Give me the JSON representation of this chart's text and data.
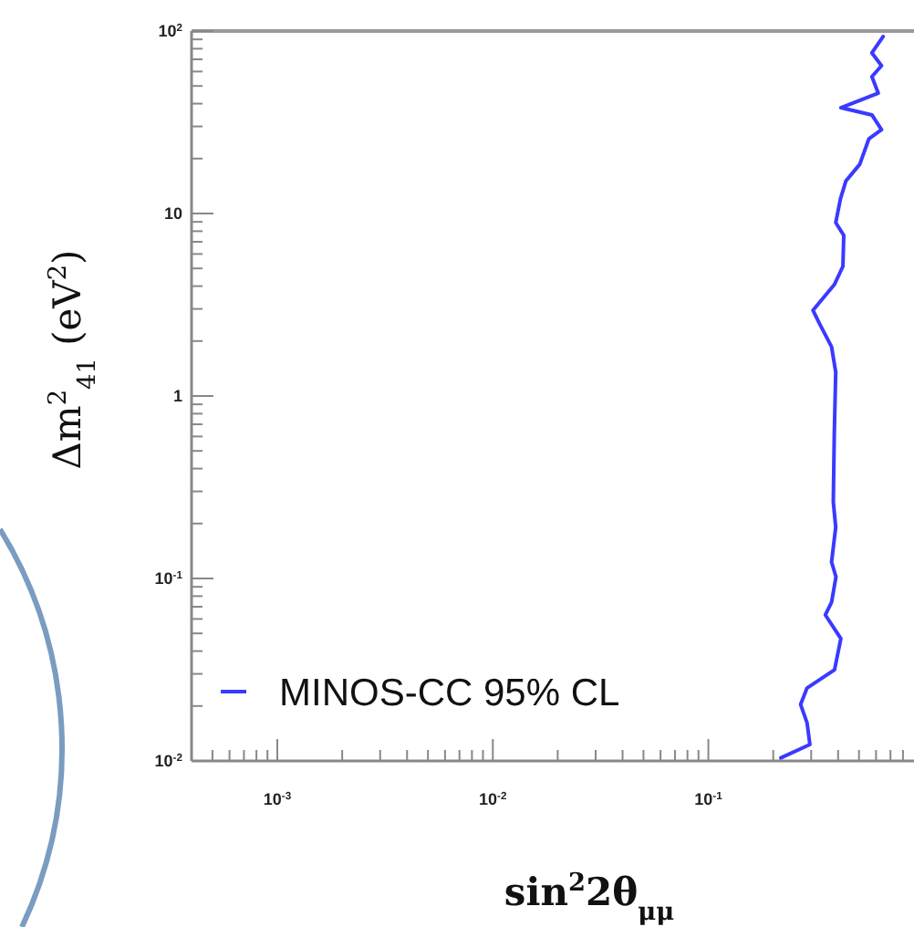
{
  "chart_data": {
    "type": "line",
    "xlabel": "sin$^{2}$2θ$_{μμ}$",
    "ylabel": "Δm$^{2}$$_{41}$ (eV$^{2}$)",
    "log": "xy",
    "xlim": [
      0.0004,
      0.9
    ],
    "ylim": [
      0.01,
      100
    ],
    "xticks": [
      {
        "value": 0.0005,
        "label": null
      },
      {
        "value": 0.0006,
        "label": null
      },
      {
        "value": 0.0007,
        "label": null
      },
      {
        "value": 0.0008,
        "label": null
      },
      {
        "value": 0.0009,
        "label": null
      },
      {
        "value": 0.001,
        "label": "10$^{-3}$"
      },
      {
        "value": 0.002,
        "label": null
      },
      {
        "value": 0.003,
        "label": null
      },
      {
        "value": 0.004,
        "label": null
      },
      {
        "value": 0.005,
        "label": null
      },
      {
        "value": 0.006,
        "label": null
      },
      {
        "value": 0.007,
        "label": null
      },
      {
        "value": 0.008,
        "label": null
      },
      {
        "value": 0.009,
        "label": null
      },
      {
        "value": 0.01,
        "label": "10$^{-2}$"
      },
      {
        "value": 0.02,
        "label": null
      },
      {
        "value": 0.03,
        "label": null
      },
      {
        "value": 0.04,
        "label": null
      },
      {
        "value": 0.05,
        "label": null
      },
      {
        "value": 0.06,
        "label": null
      },
      {
        "value": 0.07,
        "label": null
      },
      {
        "value": 0.08,
        "label": null
      },
      {
        "value": 0.09,
        "label": null
      },
      {
        "value": 0.1,
        "label": "10$^{-1}$"
      },
      {
        "value": 0.2,
        "label": null
      },
      {
        "value": 0.3,
        "label": null
      },
      {
        "value": 0.4,
        "label": null
      },
      {
        "value": 0.5,
        "label": null
      },
      {
        "value": 0.6,
        "label": null
      },
      {
        "value": 0.7,
        "label": null
      },
      {
        "value": 0.8,
        "label": null
      }
    ],
    "yticks": [
      {
        "value": 0.01,
        "label": "10$^{-2}$"
      },
      {
        "value": 0.02,
        "label": null
      },
      {
        "value": 0.03,
        "label": null
      },
      {
        "value": 0.04,
        "label": null
      },
      {
        "value": 0.05,
        "label": null
      },
      {
        "value": 0.06,
        "label": null
      },
      {
        "value": 0.07,
        "label": null
      },
      {
        "value": 0.08,
        "label": null
      },
      {
        "value": 0.09,
        "label": null
      },
      {
        "value": 0.1,
        "label": "10$^{-1}$"
      },
      {
        "value": 0.2,
        "label": null
      },
      {
        "value": 0.3,
        "label": null
      },
      {
        "value": 0.4,
        "label": null
      },
      {
        "value": 0.5,
        "label": null
      },
      {
        "value": 0.6,
        "label": null
      },
      {
        "value": 0.7,
        "label": null
      },
      {
        "value": 0.8,
        "label": null
      },
      {
        "value": 0.9,
        "label": null
      },
      {
        "value": 1,
        "label": "1"
      },
      {
        "value": 2,
        "label": null
      },
      {
        "value": 3,
        "label": null
      },
      {
        "value": 4,
        "label": null
      },
      {
        "value": 5,
        "label": null
      },
      {
        "value": 6,
        "label": null
      },
      {
        "value": 7,
        "label": null
      },
      {
        "value": 8,
        "label": null
      },
      {
        "value": 9,
        "label": null
      },
      {
        "value": 10,
        "label": "10"
      },
      {
        "value": 20,
        "label": null
      },
      {
        "value": 30,
        "label": null
      },
      {
        "value": 40,
        "label": null
      },
      {
        "value": 50,
        "label": null
      },
      {
        "value": 60,
        "label": null
      },
      {
        "value": 70,
        "label": null
      },
      {
        "value": 80,
        "label": null
      },
      {
        "value": 90,
        "label": null
      },
      {
        "value": 100,
        "label": "10$^{2}$"
      }
    ],
    "legend": "bottom left",
    "grid": false,
    "series": [
      {
        "name": "MINOS-CC 95% CL",
        "color": "#3a3aff",
        "x": [
          0.217,
          0.296,
          0.287,
          0.268,
          0.287,
          0.385,
          0.412,
          0.349,
          0.373,
          0.391,
          0.373,
          0.39,
          0.38,
          0.384,
          0.39,
          0.373,
          0.327,
          0.306,
          0.384,
          0.421,
          0.425,
          0.39,
          0.41,
          0.435,
          0.504,
          0.556,
          0.636,
          0.574,
          0.412,
          0.614,
          0.574,
          0.636,
          0.574,
          0.647
        ],
        "values": [
          0.0104,
          0.0123,
          0.0162,
          0.0204,
          0.0251,
          0.0316,
          0.0468,
          0.0631,
          0.0741,
          0.102,
          0.123,
          0.191,
          0.263,
          0.617,
          1.35,
          1.86,
          2.51,
          2.95,
          4.07,
          5.13,
          7.59,
          8.91,
          12.0,
          15.1,
          18.6,
          25.7,
          28.8,
          34.7,
          38.0,
          45.7,
          56.2,
          64.6,
          75.9,
          93.3
        ]
      }
    ]
  }
}
